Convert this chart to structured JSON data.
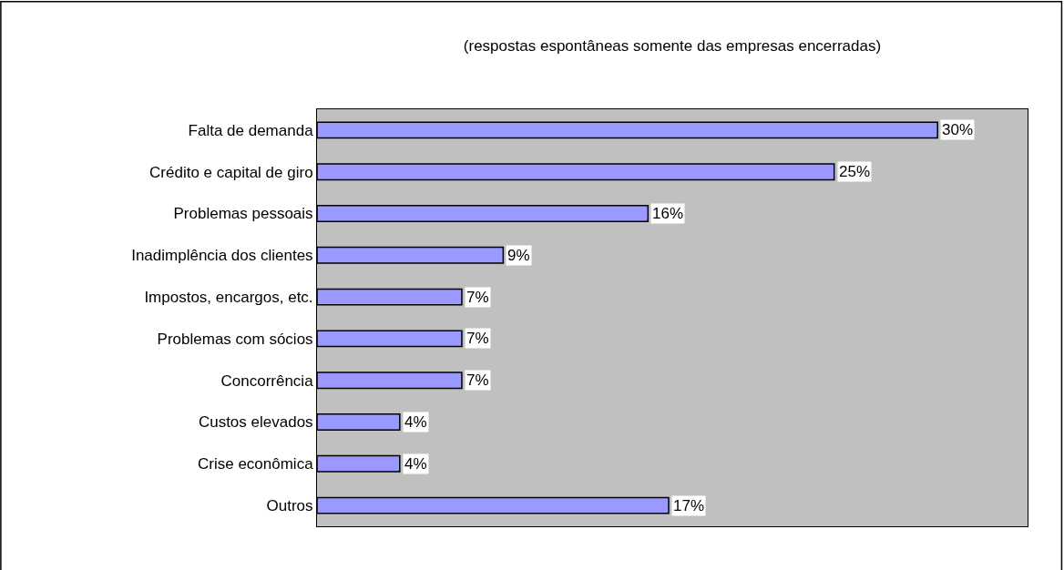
{
  "chart_data": {
    "type": "bar",
    "orientation": "horizontal",
    "title": "(respostas espontâneas somente das empresas encerradas)",
    "categories": [
      "Falta de demanda",
      "Crédito e capital de giro",
      "Problemas pessoais",
      "Inadimplência dos clientes",
      "Impostos, encargos, etc.",
      "Problemas com sócios",
      "Concorrência",
      "Custos elevados",
      "Crise econômica",
      "Outros"
    ],
    "values": [
      30,
      25,
      16,
      9,
      7,
      7,
      7,
      4,
      4,
      17
    ],
    "value_labels": [
      "30%",
      "25%",
      "16%",
      "9%",
      "7%",
      "7%",
      "7%",
      "4%",
      "4%",
      "17%"
    ],
    "color": "#9999ff",
    "grid": false,
    "legend": false
  }
}
